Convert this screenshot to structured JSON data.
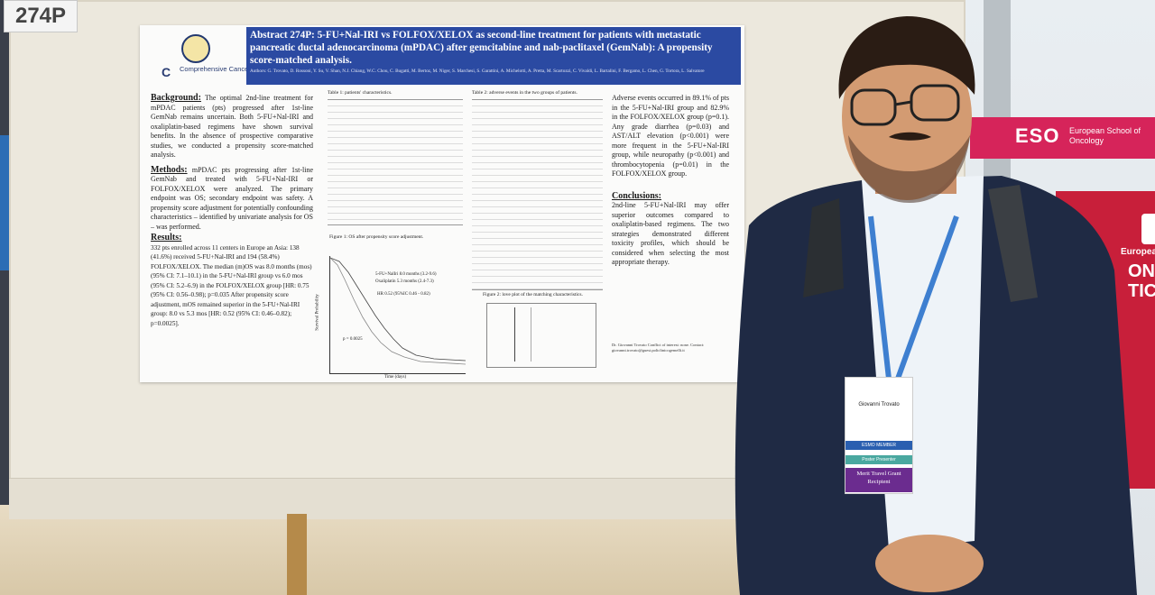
{
  "board_number": "274P",
  "poster": {
    "title": "Abstract 274P: 5-FU+Nal-IRI vs FOLFOX/XELOX as second-line treatment for patients with metastatic pancreatic ductal adenocarcinoma (mPDAC) after gemcitabine and nab-paclitaxel (GemNab): A propensity score-matched analysis.",
    "authors": "Authors: G. Trovato, D. Rossoni, Y. Su, V. Shan, N.J. Chiang, W.C. Chou, C. Bugatti, M. Bertoz, M. Niger, S. Marchesi, S. Garattini, A. Michelotti, A. Pretta, M. Scartozzi, C. Vivaldi, L. Bartalini, F. Bergamo, L. Chen, G. Tortora, L. Salvatore",
    "institution_logo_text": "Comprehensive Cancer Center",
    "background_heading": "Background:",
    "background_text": "The optimal 2nd-line treatment for mPDAC patients (pts) progressed after 1st-line GemNab remains uncertain. Both 5-FU+Nal-IRI and oxaliplatin-based regimens have shown survival benefits. In the absence of prospective comparative studies, we conducted a propensity score-matched analysis.",
    "methods_heading": "Methods:",
    "methods_text": "mPDAC pts progressing after 1st-line GemNab and treated with 5-FU+Nal-IRI or FOLFOX/XELOX were analyzed. The primary endpoint was OS; secondary endpoint was safety. A propensity score adjustment for potentially confounding characteristics – identified by univariate analysis for OS – was performed.",
    "results_heading": "Results:",
    "results_text": "332 pts enrolled across 11 centers in Europe an Asia: 138 (41.6%) received 5-FU+Nal-IRI and 194 (58.4%) FOLFOX/XELOX. The median (m)OS was 8.0 months (mos) (95% CI: 7.1–10.1) in the 5-FU+Nal-IRI group vs 6.0 mos (95% CI: 5.2–6.9) in the FOLFOX/XELOX group [HR: 0.75 (95% CI: 0.56–0.98); p=0.035 After propensity score adjustment, mOS remained superior in the 5-FU+Nal-IRI group: 8.0 vs 5.3 mos [HR: 0.52 (95% CI: 0.46–0.82); p=0.0025].",
    "table1_caption": "Table 1: patients' characteristics.",
    "table2_caption": "Table 2: adverse events in the two groups of patients.",
    "figure1_caption": "Figure 1: OS after propensity score adjustment.",
    "figure2_caption": "Figure 2: love plot of the matching characteristics.",
    "km_legend_1": "5-FU+NalIri    8.0 months (3.2-9.6)",
    "km_legend_2": "Oxaliplatin    5.3 months (2.4-7.3)",
    "km_hr": "HR 0.52 (95%IC 0.46 - 0.82)",
    "km_p": "p = 0.0025",
    "km_ylabel": "Survival Probability",
    "km_xlabel": "Time (days)",
    "adverse_text": "Adverse events occurred in 89.1% of pts in the 5-FU+Nal-IRI group and 82.9% in the FOLFOX/XELOX group (p=0.1). Any grade diarrhea (p=0.03) and AST/ALT elevation (p<0.001) were more frequent in the 5-FU+Nal-IRI group, while neuropathy (p<0.001) and thrombocytopenia (p=0.01) in the FOLFOX/XELOX group.",
    "conclusions_heading": "Conclusions:",
    "conclusions_text": "2nd-line 5-FU+Nal-IRI may offer superior outcomes compared to oxaliplatin-based regimens. The two strategies demonstrated different toxicity profiles, which should be considered when selecting the most appropriate therapy.",
    "contact": "Dr. Giovanni Trovato  Conflict of interest: none.  Contact: giovanni.trovato@guest.policlinicogemelli.it"
  },
  "booth": {
    "logo": "ESO",
    "subtitle": "European School of Oncology",
    "red_text_1": "European",
    "red_text_2": "ONC TIC"
  },
  "badge": {
    "name": "Giovanni Trovato",
    "member": "ESMO MEMBER",
    "poster_label": "Poster Presenter",
    "grant": "Merit Travel Grant Recipient"
  },
  "colors": {
    "poster_header": "#2b4aa2",
    "booth_pink": "#d6245a",
    "booth_red": "#c81f3a",
    "jacket": "#1f2a44"
  }
}
